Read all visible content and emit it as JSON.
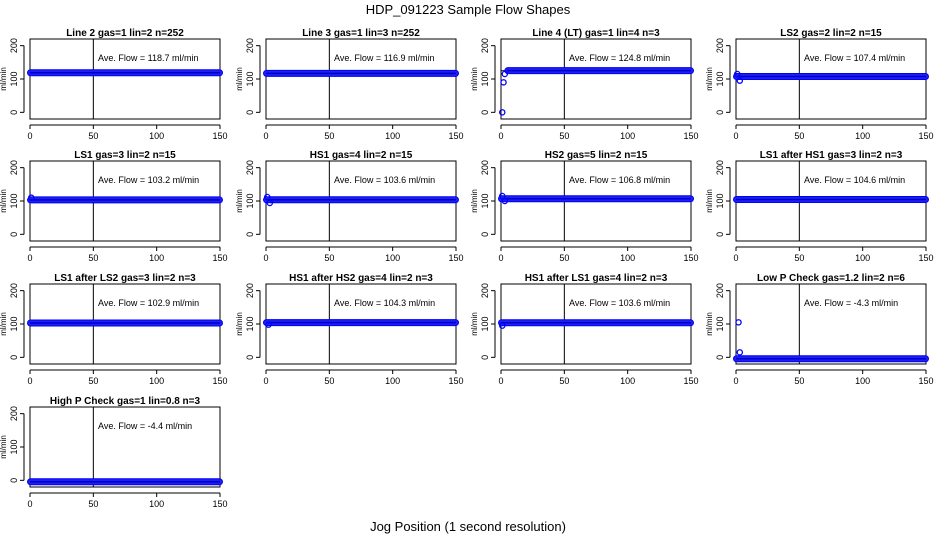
{
  "figure": {
    "title": "HDP_091223  Sample Flow Shapes",
    "xlabel": "Jog Position (1 second resolution)"
  },
  "chart_data": [
    {
      "type": "scatter",
      "title": "Line 2 gas=1 lin=2 n=252",
      "ylabel": "ml/min",
      "annotation": "Ave. Flow =  118.7  ml/min",
      "xlim": [
        0,
        150
      ],
      "ylim": [
        -20,
        220
      ],
      "xticks": [
        "0",
        "50",
        "100",
        "150"
      ],
      "yticks": [
        "0",
        "100",
        "200"
      ],
      "reference_lines": {
        "x": 50,
        "y": 118.7
      },
      "x": [
        0,
        150
      ],
      "y": [
        118.7,
        118.7
      ],
      "outliers": []
    },
    {
      "type": "scatter",
      "title": "Line 3 gas=1 lin=3 n=252",
      "ylabel": "ml/min",
      "annotation": "Ave. Flow =  116.9  ml/min",
      "xlim": [
        0,
        150
      ],
      "ylim": [
        -20,
        220
      ],
      "xticks": [
        "0",
        "50",
        "100",
        "150"
      ],
      "yticks": [
        "0",
        "100",
        "200"
      ],
      "reference_lines": {
        "x": 50,
        "y": 116.9
      },
      "x": [
        0,
        150
      ],
      "y": [
        116.9,
        116.9
      ],
      "outliers": []
    },
    {
      "type": "scatter",
      "title": "Line 4 (LT) gas=1 lin=4 n=3",
      "ylabel": "ml/min",
      "annotation": "Ave. Flow =  124.8  ml/min",
      "xlim": [
        0,
        150
      ],
      "ylim": [
        -20,
        220
      ],
      "xticks": [
        "0",
        "50",
        "100",
        "150"
      ],
      "yticks": [
        "0",
        "100",
        "200"
      ],
      "reference_lines": {
        "x": 50,
        "y": 124.8
      },
      "x": [
        5,
        150
      ],
      "y": [
        125,
        125
      ],
      "outliers": [
        {
          "x": 1,
          "y": 0
        },
        {
          "x": 2,
          "y": 90
        },
        {
          "x": 3,
          "y": 115
        }
      ]
    },
    {
      "type": "scatter",
      "title": "LS2 gas=2 lin=2 n=15",
      "ylabel": "ml/min",
      "annotation": "Ave. Flow =  107.4  ml/min",
      "xlim": [
        0,
        150
      ],
      "ylim": [
        -20,
        220
      ],
      "xticks": [
        "0",
        "50",
        "100",
        "150"
      ],
      "yticks": [
        "0",
        "100",
        "200"
      ],
      "reference_lines": {
        "x": 50,
        "y": 107.4
      },
      "x": [
        0,
        150
      ],
      "y": [
        107.4,
        107.4
      ],
      "outliers": [
        {
          "x": 1,
          "y": 115
        },
        {
          "x": 3,
          "y": 95
        }
      ]
    },
    {
      "type": "scatter",
      "title": "LS1 gas=3 lin=2 n=15",
      "ylabel": "ml/min",
      "annotation": "Ave. Flow =  103.2  ml/min",
      "xlim": [
        0,
        150
      ],
      "ylim": [
        -20,
        220
      ],
      "xticks": [
        "0",
        "50",
        "100",
        "150"
      ],
      "yticks": [
        "0",
        "100",
        "200"
      ],
      "reference_lines": {
        "x": 50,
        "y": 103.2
      },
      "x": [
        0,
        150
      ],
      "y": [
        103.2,
        103.2
      ],
      "outliers": [
        {
          "x": 1,
          "y": 110
        }
      ]
    },
    {
      "type": "scatter",
      "title": "HS1 gas=4 lin=2 n=15",
      "ylabel": "ml/min",
      "annotation": "Ave. Flow =  103.6  ml/min",
      "xlim": [
        0,
        150
      ],
      "ylim": [
        -20,
        220
      ],
      "xticks": [
        "0",
        "50",
        "100",
        "150"
      ],
      "yticks": [
        "0",
        "100",
        "200"
      ],
      "reference_lines": {
        "x": 50,
        "y": 103.6
      },
      "x": [
        0,
        150
      ],
      "y": [
        103.6,
        103.6
      ],
      "outliers": [
        {
          "x": 1,
          "y": 112
        },
        {
          "x": 3,
          "y": 94
        }
      ]
    },
    {
      "type": "scatter",
      "title": "HS2 gas=5 lin=2 n=15",
      "ylabel": "ml/min",
      "annotation": "Ave. Flow =  106.8  ml/min",
      "xlim": [
        0,
        150
      ],
      "ylim": [
        -20,
        220
      ],
      "xticks": [
        "0",
        "50",
        "100",
        "150"
      ],
      "yticks": [
        "0",
        "100",
        "200"
      ],
      "reference_lines": {
        "x": 50,
        "y": 106.8
      },
      "x": [
        0,
        150
      ],
      "y": [
        106.8,
        106.8
      ],
      "outliers": [
        {
          "x": 1,
          "y": 115
        },
        {
          "x": 3,
          "y": 100
        }
      ]
    },
    {
      "type": "scatter",
      "title": "LS1 after HS1 gas=3 lin=2 n=3",
      "ylabel": "ml/min",
      "annotation": "Ave. Flow =  104.6  ml/min",
      "xlim": [
        0,
        150
      ],
      "ylim": [
        -20,
        220
      ],
      "xticks": [
        "0",
        "50",
        "100",
        "150"
      ],
      "yticks": [
        "0",
        "100",
        "200"
      ],
      "reference_lines": {
        "x": 50,
        "y": 104.6
      },
      "x": [
        0,
        150
      ],
      "y": [
        104.6,
        104.6
      ],
      "outliers": []
    },
    {
      "type": "scatter",
      "title": "LS1 after LS2 gas=3 lin=2 n=3",
      "ylabel": "ml/min",
      "annotation": "Ave. Flow =  102.9  ml/min",
      "xlim": [
        0,
        150
      ],
      "ylim": [
        -20,
        220
      ],
      "xticks": [
        "0",
        "50",
        "100",
        "150"
      ],
      "yticks": [
        "0",
        "100",
        "200"
      ],
      "reference_lines": {
        "x": 50,
        "y": 102.9
      },
      "x": [
        0,
        150
      ],
      "y": [
        102.9,
        102.9
      ],
      "outliers": []
    },
    {
      "type": "scatter",
      "title": "HS1 after HS2 gas=4 lin=2 n=3",
      "ylabel": "ml/min",
      "annotation": "Ave. Flow =  104.3  ml/min",
      "xlim": [
        0,
        150
      ],
      "ylim": [
        -20,
        220
      ],
      "xticks": [
        "0",
        "50",
        "100",
        "150"
      ],
      "yticks": [
        "0",
        "100",
        "200"
      ],
      "reference_lines": {
        "x": 50,
        "y": 104.3
      },
      "x": [
        0,
        150
      ],
      "y": [
        104.3,
        104.3
      ],
      "outliers": [
        {
          "x": 2,
          "y": 98
        }
      ]
    },
    {
      "type": "scatter",
      "title": "HS1 after LS1 gas=4 lin=2 n=3",
      "ylabel": "ml/min",
      "annotation": "Ave. Flow =  103.6  ml/min",
      "xlim": [
        0,
        150
      ],
      "ylim": [
        -20,
        220
      ],
      "xticks": [
        "0",
        "50",
        "100",
        "150"
      ],
      "yticks": [
        "0",
        "100",
        "200"
      ],
      "reference_lines": {
        "x": 50,
        "y": 103.6
      },
      "x": [
        0,
        150
      ],
      "y": [
        103.6,
        103.6
      ],
      "outliers": [
        {
          "x": 1,
          "y": 95
        }
      ]
    },
    {
      "type": "scatter",
      "title": "Low P Check gas=1.2 lin=2 n=6",
      "ylabel": "ml/min",
      "annotation": "Ave. Flow =  -4.3  ml/min",
      "xlim": [
        0,
        150
      ],
      "ylim": [
        -20,
        220
      ],
      "xticks": [
        "0",
        "50",
        "100",
        "150"
      ],
      "yticks": [
        "0",
        "100",
        "200"
      ],
      "reference_lines": {
        "x": 50,
        "y": -4.3
      },
      "x": [
        0,
        150
      ],
      "y": [
        -4.3,
        -4.3
      ],
      "outliers": [
        {
          "x": 2,
          "y": 105
        },
        {
          "x": 3,
          "y": 15
        }
      ]
    },
    {
      "type": "scatter",
      "title": "High P Check gas=1 lin=0.8 n=3",
      "ylabel": "ml/min",
      "annotation": "Ave. Flow =  -4.4  ml/min",
      "xlim": [
        0,
        150
      ],
      "ylim": [
        -20,
        220
      ],
      "xticks": [
        "0",
        "50",
        "100",
        "150"
      ],
      "yticks": [
        "0",
        "100",
        "200"
      ],
      "reference_lines": {
        "x": 50,
        "y": -4.4
      },
      "x": [
        0,
        150
      ],
      "y": [
        -4.4,
        -4.4
      ],
      "outliers": []
    }
  ]
}
